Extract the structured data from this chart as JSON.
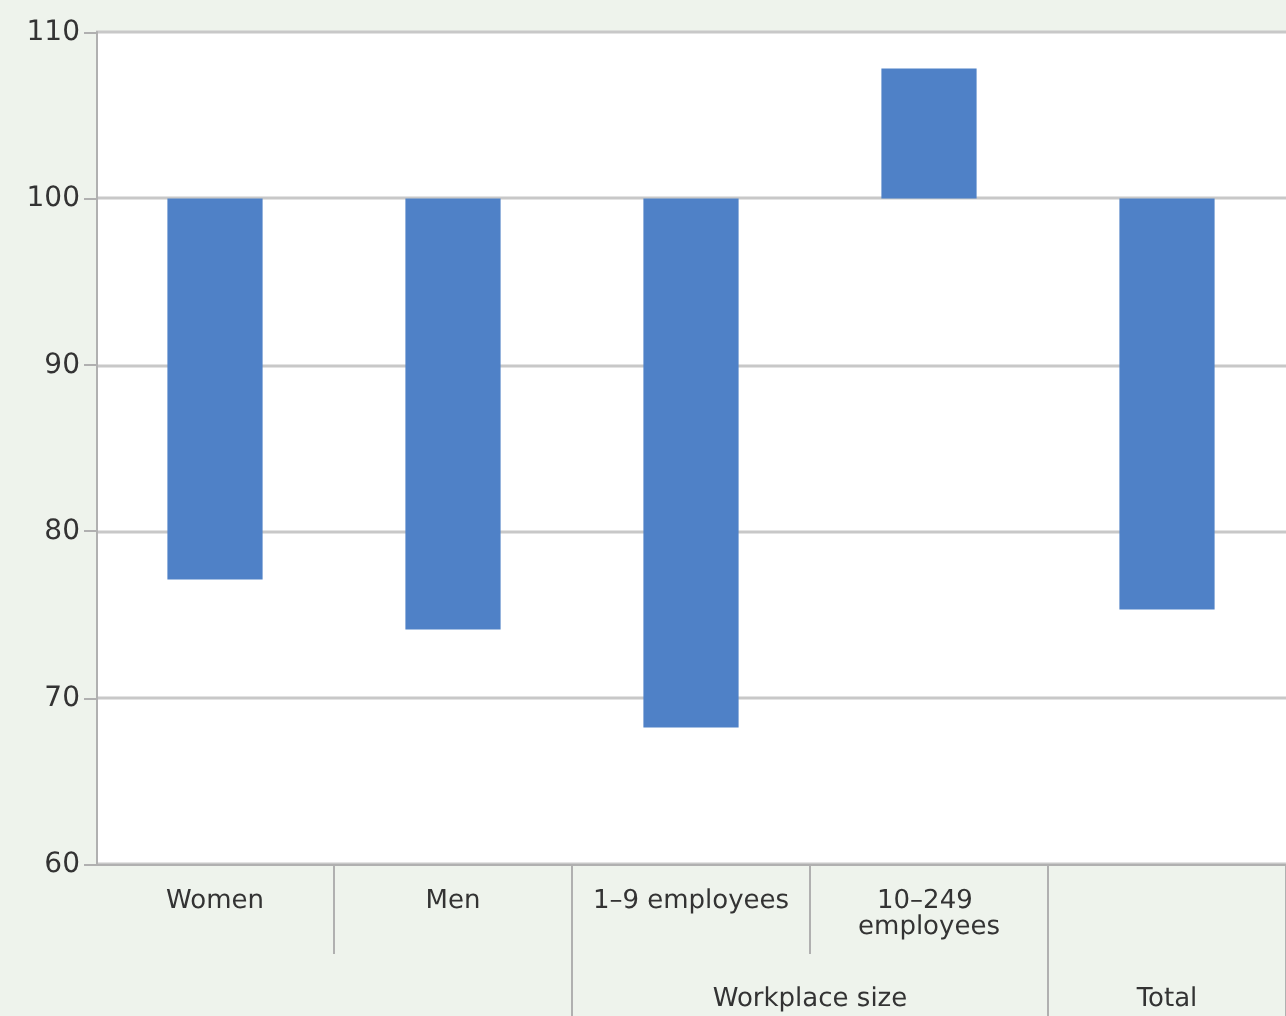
{
  "chart_data": {
    "type": "bar",
    "categories": [
      "Women",
      "Men",
      "1–9 employees",
      "10–249 employees",
      null
    ],
    "base": [
      100,
      100,
      100,
      100,
      100
    ],
    "values": [
      -22.9,
      -25.9,
      -31.8,
      7.8,
      -24.7
    ],
    "color": "#4f81c7",
    "ylim": [
      60,
      110
    ],
    "yticks": [
      60,
      70,
      80,
      90,
      100,
      110
    ],
    "grid": true,
    "annotations": [
      "Workplace size",
      "Total"
    ]
  }
}
